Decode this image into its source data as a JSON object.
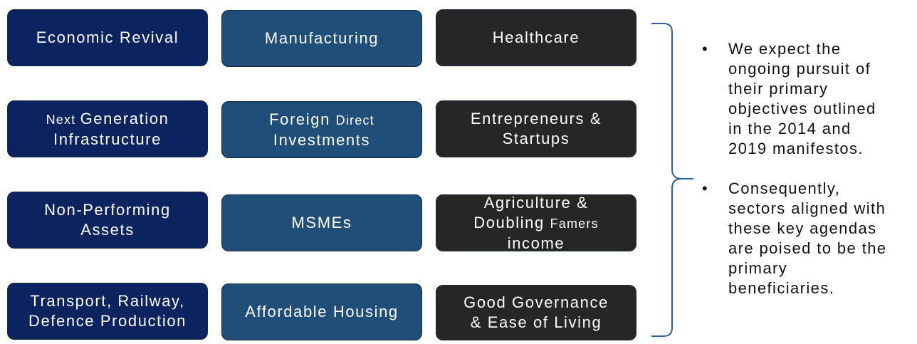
{
  "columns": [
    {
      "items": [
        {
          "lines": [
            {
              "text": "Economic Revival"
            }
          ]
        },
        {
          "lines": [
            {
              "a": "Next ",
              "b": "Generation"
            },
            {
              "text": "Infrastructure"
            }
          ]
        },
        {
          "lines": [
            {
              "text": "Non-Performing"
            },
            {
              "text": "Assets"
            }
          ]
        },
        {
          "lines": [
            {
              "text": "Transport, Railway,"
            },
            {
              "text": "Defence Production"
            }
          ]
        }
      ]
    },
    {
      "items": [
        {
          "lines": [
            {
              "text": "Manufacturing"
            }
          ]
        },
        {
          "lines": [
            {
              "a": "Foreign ",
              "b": "Direct"
            },
            {
              "text": "Investments"
            }
          ]
        },
        {
          "lines": [
            {
              "text": "MSMEs"
            }
          ]
        },
        {
          "lines": [
            {
              "text": "Affordable Housing"
            }
          ]
        }
      ]
    },
    {
      "items": [
        {
          "lines": [
            {
              "text": "Healthcare"
            }
          ]
        },
        {
          "lines": [
            {
              "text": "Entrepreneurs &"
            },
            {
              "text": "Startups"
            }
          ]
        },
        {
          "lines": [
            {
              "text": "Agriculture &"
            },
            {
              "a": "Doubling ",
              "b": "Famers"
            },
            {
              "text": "income"
            }
          ]
        },
        {
          "lines": [
            {
              "text": "Good Governance"
            },
            {
              "text": "& Ease of Living"
            }
          ]
        }
      ]
    }
  ],
  "bullets": {
    "marker": "•",
    "items": [
      {
        "lines": [
          "We expect the",
          "ongoing pursuit of",
          "their primary",
          "objectives outlined",
          "in the 2014 and",
          "2019 manifestos."
        ]
      },
      {
        "lines": [
          "Consequently,",
          "sectors aligned with",
          "these key agendas",
          "are poised to be the",
          "primary",
          "beneficiaries."
        ]
      }
    ]
  },
  "colors": {
    "column1": "#0b2460",
    "column2": "#1f4e79",
    "column3": "#262626",
    "brace": "#2e5f9e"
  }
}
